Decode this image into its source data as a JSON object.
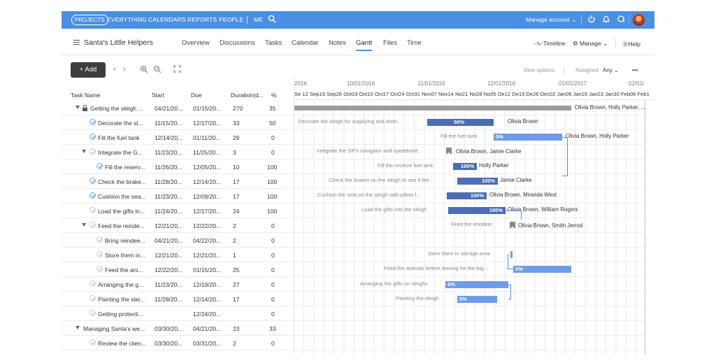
{
  "topnav": {
    "items": [
      "PROJECTS",
      "EVERYTHING",
      "CALENDARS",
      "REPORTS",
      "PEOPLE",
      "ME"
    ],
    "manage_account": "Manage account"
  },
  "project": {
    "title": "Santa's Little Helpers",
    "tabs": [
      "Overview",
      "Discussions",
      "Tasks",
      "Calendar",
      "Notes",
      "Gantt",
      "Files",
      "Time"
    ],
    "active_tab": "Gantt",
    "tools": {
      "timeline": "Timeline",
      "manage": "Manage",
      "help": "Help"
    }
  },
  "toolbar": {
    "add_label": "Add",
    "view_options": "View options",
    "assigned_label": "Assigned",
    "assigned_value": "Any"
  },
  "table": {
    "columns": [
      "Task Name",
      "Start",
      "Due",
      "Duration(d...",
      "%"
    ],
    "rows": [
      {
        "name": "Getting the sleigh ...",
        "start": "04/21/20...",
        "due": "01/15/20...",
        "duration": "270",
        "pct": "35"
      },
      {
        "name": "Decorate the sl...",
        "start": "11/15/20...",
        "due": "12/17/20...",
        "duration": "33",
        "pct": "50"
      },
      {
        "name": "Fill the fuel tank",
        "start": "12/14/20...",
        "due": "01/11/20...",
        "duration": "29",
        "pct": "0"
      },
      {
        "name": "Integrate the G...",
        "start": "11/23/20...",
        "due": "11/25/20...",
        "duration": "3",
        "pct": "0"
      },
      {
        "name": "Fill the reserv...",
        "start": "11/26/20...",
        "due": "12/05/20...",
        "duration": "10",
        "pct": "100"
      },
      {
        "name": "Check the brake...",
        "start": "11/28/20...",
        "due": "12/14/20...",
        "duration": "17",
        "pct": "100"
      },
      {
        "name": "Cushion the sea...",
        "start": "11/23/20...",
        "due": "12/09/20...",
        "duration": "17",
        "pct": "100"
      },
      {
        "name": "Load the gifts in...",
        "start": "11/24/20...",
        "due": "12/17/20...",
        "duration": "24",
        "pct": "100"
      },
      {
        "name": "Feed the reinde...",
        "start": "12/21/20...",
        "due": "12/22/20...",
        "duration": "2",
        "pct": "0"
      },
      {
        "name": "Bring reindee...",
        "start": "04/21/20...",
        "due": "04/22/20...",
        "duration": "2",
        "pct": "0"
      },
      {
        "name": "Store them in...",
        "start": "12/21/20...",
        "due": "12/21/20...",
        "duration": "1",
        "pct": "0"
      },
      {
        "name": "Feed the ani...",
        "start": "12/22/20...",
        "due": "01/15/20...",
        "duration": "25",
        "pct": "0"
      },
      {
        "name": "Arranging the g...",
        "start": "11/23/20...",
        "due": "12/19/20...",
        "duration": "27",
        "pct": "0"
      },
      {
        "name": "Painting the slei...",
        "start": "11/28/20...",
        "due": "12/14/20...",
        "duration": "17",
        "pct": "0"
      },
      {
        "name": "Getting protecti...",
        "start": "",
        "due": "12/24/20...",
        "duration": "",
        "pct": "0"
      },
      {
        "name": "Managing Santa's we...",
        "start": "03/30/20...",
        "due": "04/21/20...",
        "duration": "23",
        "pct": "33"
      },
      {
        "name": "Review the clien...",
        "start": "03/30/20...",
        "due": "03/31/20...",
        "duration": "2",
        "pct": "0"
      }
    ]
  },
  "gantt": {
    "months": [
      "2016",
      "10/01/2016",
      "11/01/2016",
      "12/01/2016",
      "01/01/2017",
      "02/01/"
    ],
    "weeks": "Se 12 Sep19 Sep26 Oct03 Oct10 Oct17 Oct24 Oct31 Nov07 Nov14 No21 No28 No05 De12 De19 De26 Dec02 Jan09 Jan16 Jan23 Jan30 Feb06 Feb1",
    "task_labels": [
      "Decorate the sleigh for supplying and distri...",
      "Fill the fuel tank",
      "Integrate the GPS navigator and speedome...",
      "Fill the reserve fuel tank",
      "Check the brakes on the sleigh to see if the...",
      "Cushion the seat on the sleigh with pillow f...",
      "Load the gifts into the sleigh",
      "Feed the reindeer",
      "Store them in storage area",
      "Feed the animals before leaving for the big...",
      "Arranging the gifts on sleighs",
      "Painting the sleigh"
    ],
    "bar_pcts": [
      "50%",
      "0%",
      "100%",
      "100%",
      "100%",
      "100%",
      "0%",
      "0%",
      "0%"
    ],
    "assignees": [
      "Olivia Brown, Holly Parker, ...",
      "Olivia Brown",
      "Olivia Brown, Holly Parker",
      "Olivia Brown, Jamie Clarke",
      "Holly Parker",
      "Jamie Clarke",
      "Olivia Brown, Miranda West",
      "Olivia Brown, William Rogers",
      "Olivia Brown, Smith Jerrod"
    ]
  },
  "colors": {
    "topbar": "#4a90e2",
    "bar_done": "#4c6db3",
    "bar_open": "#6d9de8",
    "summary": "#9c9c9c"
  }
}
